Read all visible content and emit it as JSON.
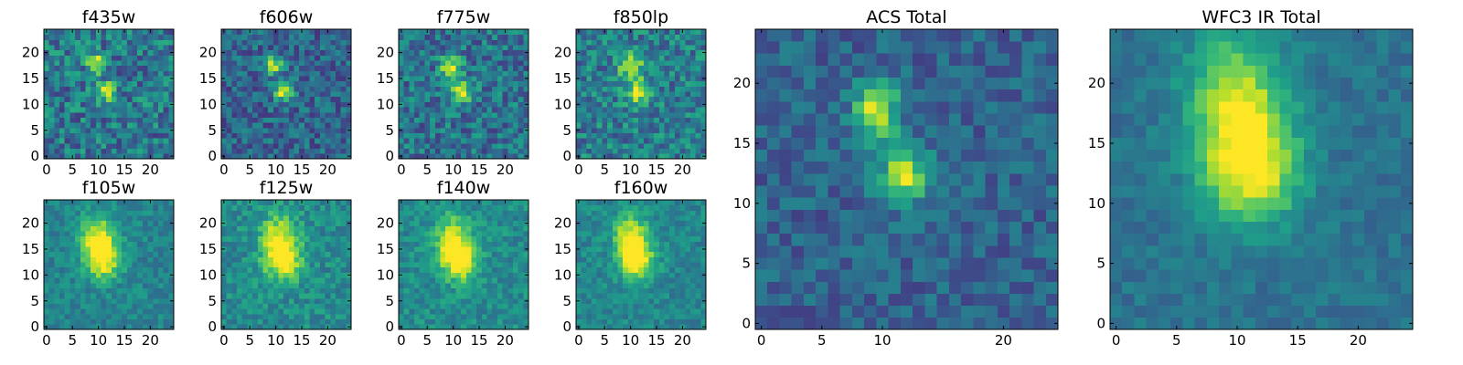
{
  "figure": {
    "colormap": "viridis",
    "colormap_stops": [
      "#440154",
      "#482878",
      "#3e4989",
      "#31688e",
      "#26828e",
      "#1f9e89",
      "#35b779",
      "#6ece58",
      "#b5de2b",
      "#fde725"
    ],
    "frame_color": "#000000",
    "background": "#ffffff"
  },
  "chart_data": [
    {
      "type": "heatmap",
      "title": "f435w",
      "grid": false,
      "xlim": [
        0,
        24
      ],
      "ylim": [
        0,
        24
      ],
      "xticks": [
        0,
        5,
        10,
        15,
        20
      ],
      "yticks": [
        0,
        5,
        10,
        15,
        20
      ],
      "sources": [
        {
          "x": 9.5,
          "y": 18,
          "amp": 0.55,
          "sx": 1.2,
          "sy": 1.3
        },
        {
          "x": 11.5,
          "y": 12.5,
          "amp": 0.5,
          "sx": 1.3,
          "sy": 1.3
        }
      ],
      "background_level": 0.4,
      "noise": 0.22,
      "seed": 11
    },
    {
      "type": "heatmap",
      "title": "f606w",
      "grid": false,
      "xlim": [
        0,
        24
      ],
      "ylim": [
        0,
        24
      ],
      "xticks": [
        0,
        5,
        10,
        15,
        20
      ],
      "yticks": [
        0,
        5,
        10,
        15,
        20
      ],
      "sources": [
        {
          "x": 9.5,
          "y": 17.5,
          "amp": 0.6,
          "sx": 1.2,
          "sy": 1.2
        },
        {
          "x": 11.5,
          "y": 12.5,
          "amp": 0.62,
          "sx": 1.3,
          "sy": 1.3
        }
      ],
      "background_level": 0.33,
      "noise": 0.18,
      "seed": 23
    },
    {
      "type": "heatmap",
      "title": "f775w",
      "grid": false,
      "xlim": [
        0,
        24
      ],
      "ylim": [
        0,
        24
      ],
      "xticks": [
        0,
        5,
        10,
        15,
        20
      ],
      "yticks": [
        0,
        5,
        10,
        15,
        20
      ],
      "sources": [
        {
          "x": 9.5,
          "y": 17.5,
          "amp": 0.55,
          "sx": 1.4,
          "sy": 1.5
        },
        {
          "x": 11.5,
          "y": 12.5,
          "amp": 0.55,
          "sx": 1.5,
          "sy": 1.5
        }
      ],
      "background_level": 0.38,
      "noise": 0.2,
      "seed": 37
    },
    {
      "type": "heatmap",
      "title": "f850lp",
      "grid": false,
      "xlim": [
        0,
        24
      ],
      "ylim": [
        0,
        24
      ],
      "xticks": [
        0,
        5,
        10,
        15,
        20
      ],
      "yticks": [
        0,
        5,
        10,
        15,
        20
      ],
      "sources": [
        {
          "x": 10,
          "y": 17.5,
          "amp": 0.5,
          "sx": 1.6,
          "sy": 1.8
        },
        {
          "x": 11.5,
          "y": 12.5,
          "amp": 0.48,
          "sx": 1.7,
          "sy": 1.7
        }
      ],
      "background_level": 0.42,
      "noise": 0.2,
      "seed": 41
    },
    {
      "type": "heatmap",
      "title": "f105w",
      "grid": false,
      "xlim": [
        0,
        24
      ],
      "ylim": [
        0,
        24
      ],
      "xticks": [
        0,
        5,
        10,
        15,
        20
      ],
      "yticks": [
        0,
        5,
        10,
        15,
        20
      ],
      "sources": [
        {
          "x": 10,
          "y": 17,
          "amp": 0.55,
          "sx": 2.3,
          "sy": 3.2
        },
        {
          "x": 11,
          "y": 12.5,
          "amp": 0.45,
          "sx": 2.3,
          "sy": 2.5
        }
      ],
      "background_level": 0.45,
      "noise": 0.11,
      "seed": 53
    },
    {
      "type": "heatmap",
      "title": "f125w",
      "grid": false,
      "xlim": [
        0,
        24
      ],
      "ylim": [
        0,
        24
      ],
      "xticks": [
        0,
        5,
        10,
        15,
        20
      ],
      "yticks": [
        0,
        5,
        10,
        15,
        20
      ],
      "sources": [
        {
          "x": 10.5,
          "y": 17,
          "amp": 0.48,
          "sx": 2.5,
          "sy": 3.2
        },
        {
          "x": 11.5,
          "y": 12.5,
          "amp": 0.45,
          "sx": 2.5,
          "sy": 2.6
        }
      ],
      "background_level": 0.48,
      "noise": 0.13,
      "seed": 67
    },
    {
      "type": "heatmap",
      "title": "f140w",
      "grid": false,
      "xlim": [
        0,
        24
      ],
      "ylim": [
        0,
        24
      ],
      "xticks": [
        0,
        5,
        10,
        15,
        20
      ],
      "yticks": [
        0,
        5,
        10,
        15,
        20
      ],
      "sources": [
        {
          "x": 10,
          "y": 16.5,
          "amp": 0.5,
          "sx": 2.3,
          "sy": 3.5
        },
        {
          "x": 11.5,
          "y": 12.5,
          "amp": 0.45,
          "sx": 2.4,
          "sy": 2.6
        }
      ],
      "background_level": 0.48,
      "noise": 0.12,
      "seed": 71
    },
    {
      "type": "heatmap",
      "title": "f160w",
      "grid": false,
      "xlim": [
        0,
        24
      ],
      "ylim": [
        0,
        24
      ],
      "xticks": [
        0,
        5,
        10,
        15,
        20
      ],
      "yticks": [
        0,
        5,
        10,
        15,
        20
      ],
      "sources": [
        {
          "x": 10,
          "y": 17,
          "amp": 0.55,
          "sx": 2.2,
          "sy": 3.4
        },
        {
          "x": 11.5,
          "y": 12.5,
          "amp": 0.5,
          "sx": 2.2,
          "sy": 2.5
        }
      ],
      "background_level": 0.46,
      "noise": 0.11,
      "seed": 83
    },
    {
      "type": "heatmap",
      "title": "ACS Total",
      "grid": false,
      "xlim": [
        0,
        24
      ],
      "ylim": [
        0,
        24
      ],
      "xticks": [
        0,
        5,
        10,
        20
      ],
      "yticks": [
        0,
        5,
        10,
        15,
        20
      ],
      "sources": [
        {
          "x": 9.5,
          "y": 17.8,
          "amp": 0.62,
          "sx": 1.3,
          "sy": 1.6
        },
        {
          "x": 11.8,
          "y": 12.3,
          "amp": 0.58,
          "sx": 1.5,
          "sy": 1.6
        }
      ],
      "background_level": 0.32,
      "noise": 0.13,
      "seed": 97
    },
    {
      "type": "heatmap",
      "title": "WFC3 IR Total",
      "grid": false,
      "xlim": [
        0,
        24
      ],
      "ylim": [
        0,
        24
      ],
      "xticks": [
        0,
        5,
        10,
        15,
        20
      ],
      "yticks": [
        0,
        5,
        10,
        15,
        20
      ],
      "sources": [
        {
          "x": 10,
          "y": 18,
          "amp": 0.55,
          "sx": 2.8,
          "sy": 4.2
        },
        {
          "x": 11.5,
          "y": 12.5,
          "amp": 0.5,
          "sx": 2.7,
          "sy": 3.0
        }
      ],
      "background_level": 0.38,
      "noise": 0.08,
      "seed": 101
    }
  ]
}
